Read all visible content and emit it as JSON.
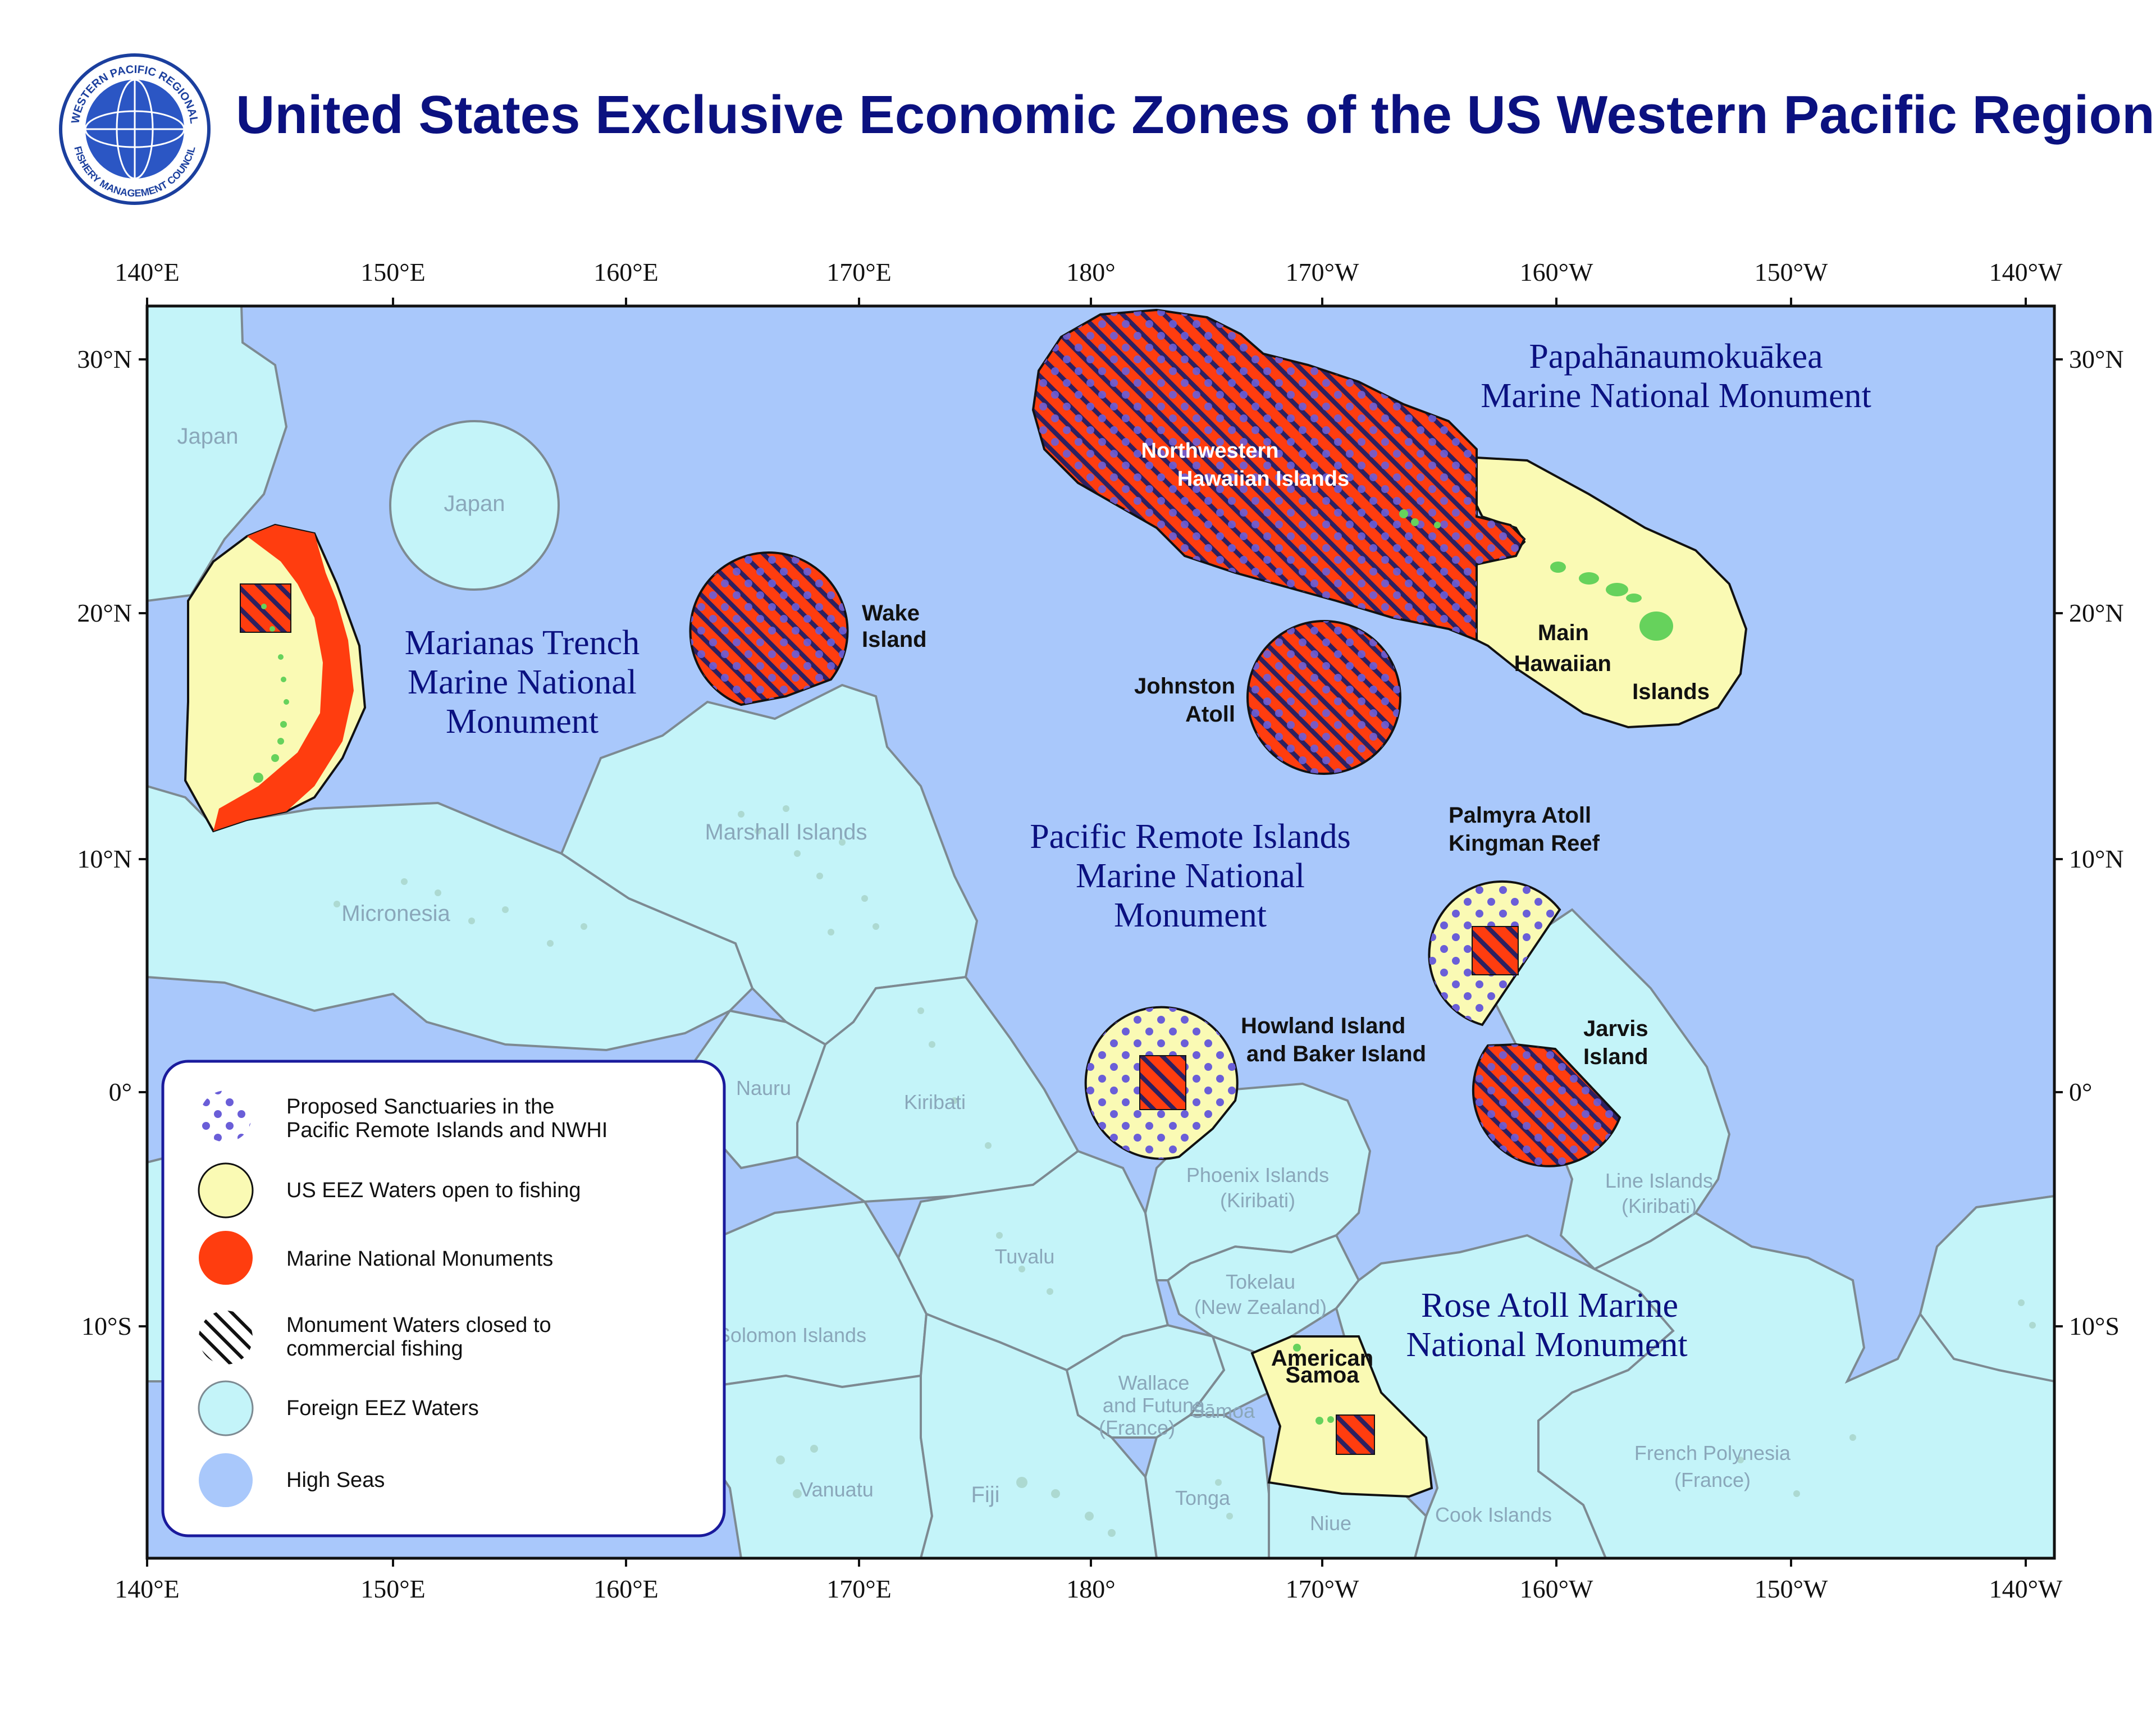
{
  "title": "United States Exclusive Economic Zones of the US Western Pacific Region",
  "seal": {
    "text_top": "WESTERN PACIFIC REGIONAL",
    "text_bottom": "FISHERY MANAGEMENT COUNCIL",
    "icon": "globe-seal-icon"
  },
  "axes": {
    "longitude_ticks": [
      "140°E",
      "150°E",
      "160°E",
      "170°E",
      "180°",
      "170°W",
      "160°W",
      "150°W",
      "140°W"
    ],
    "latitude_ticks": [
      "30°N",
      "20°N",
      "10°N",
      "0°",
      "10°S"
    ]
  },
  "monuments": {
    "papahanaumokuakea": [
      "Papahānaumokuākea",
      "Marine National Monument"
    ],
    "marianas": [
      "Marianas Trench",
      "Marine National",
      "Monument"
    ],
    "pacific_remote": [
      "Pacific Remote Islands",
      "Marine National",
      "Monument"
    ],
    "rose_atoll": [
      "Rose Atoll Marine",
      "National Monument"
    ]
  },
  "islands": {
    "nwhi": [
      "Northwestern",
      "Hawaiian Islands"
    ],
    "main_hawaiian": [
      "Main",
      "Hawaiian",
      "Islands"
    ],
    "wake": [
      "Wake",
      "Island"
    ],
    "johnston": [
      "Johnston",
      "Atoll"
    ],
    "palmyra": [
      "Palmyra Atoll",
      "Kingman Reef"
    ],
    "howland": [
      "Howland Island",
      "and Baker Island"
    ],
    "jarvis": [
      "Jarvis",
      "Island"
    ],
    "american_samoa": [
      "American",
      "Samoa"
    ]
  },
  "foreign_labels": {
    "japan_main": "Japan",
    "japan_island": "Japan",
    "marshall": "Marshall Islands",
    "micronesia": "Micronesia",
    "nauru": "Nauru",
    "kiribati": "Kiribati",
    "phoenix": [
      "Phoenix Islands",
      "(Kiribati)"
    ],
    "line": [
      "Line Islands",
      "(Kiribati)"
    ],
    "tuvalu": "Tuvalu",
    "tokelau": [
      "Tokelau",
      "(New Zealand)"
    ],
    "solomon": "Solomon Islands",
    "wallace": [
      "Wallace",
      "and Futuna",
      "(France)"
    ],
    "samoa": "Sāmoa",
    "vanuatu": "Vanuatu",
    "fiji": "Fiji",
    "tonga": "Tonga",
    "niue": "Niue",
    "cook": "Cook Islands",
    "french_polynesia": [
      "French Polynesia",
      "(France)"
    ]
  },
  "legend": {
    "items": [
      {
        "lines": [
          "Proposed Sanctuaries in the",
          "Pacific Remote Islands and NWHI"
        ],
        "icon": "dotted-circle-icon"
      },
      {
        "lines": [
          "US EEZ Waters open to fishing"
        ],
        "icon": "yellow-circle-icon"
      },
      {
        "lines": [
          "Marine National Monuments"
        ],
        "icon": "orange-circle-icon"
      },
      {
        "lines": [
          "Monument Waters closed to",
          "commercial fishing"
        ],
        "icon": "hatched-circle-icon"
      },
      {
        "lines": [
          "Foreign EEZ Waters"
        ],
        "icon": "cyan-circle-icon"
      },
      {
        "lines": [
          "High Seas"
        ],
        "icon": "blue-circle-icon"
      }
    ]
  },
  "colors": {
    "high_seas": "#a9c8fb",
    "foreign_eez": "#c4f4f9",
    "us_eez": "#fafab4",
    "monument": "#ff3d0f",
    "dots": "#6a5ed8",
    "title_blue": "#0b1180",
    "land": "#66d25c"
  }
}
